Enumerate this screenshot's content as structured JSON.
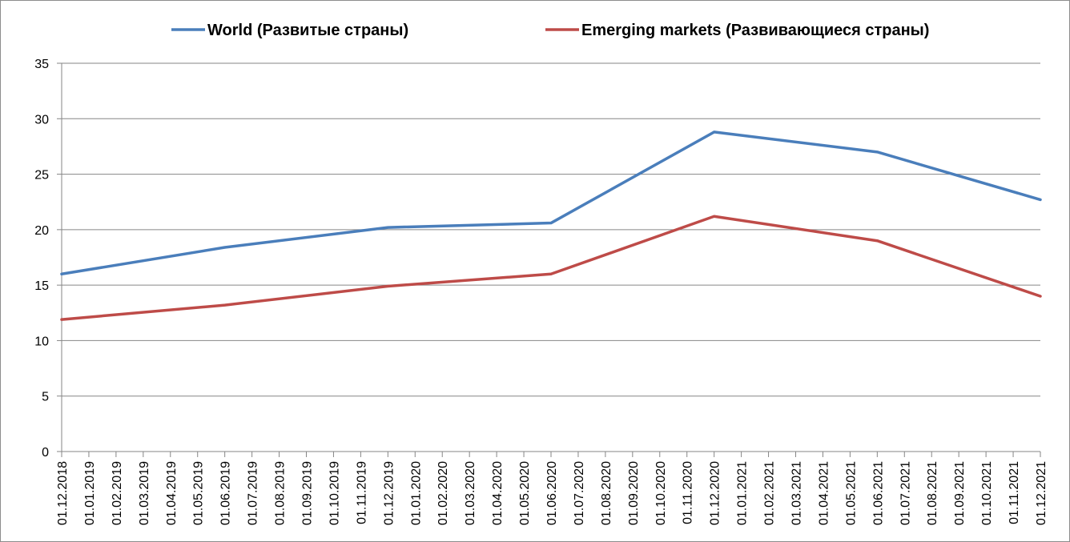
{
  "chart_data": {
    "type": "line",
    "title": "",
    "xlabel": "",
    "ylabel": "",
    "ylim": [
      0,
      35
    ],
    "yticks": [
      "0",
      "5",
      "10",
      "15",
      "20",
      "25",
      "30",
      "35"
    ],
    "grid": "horizontal",
    "legend_position": "top",
    "x": [
      "01.12.2018",
      "01.01.2019",
      "01.02.2019",
      "01.03.2019",
      "01.04.2019",
      "01.05.2019",
      "01.06.2019",
      "01.07.2019",
      "01.08.2019",
      "01.09.2019",
      "01.10.2019",
      "01.11.2019",
      "01.12.2019",
      "01.01.2020",
      "01.02.2020",
      "01.03.2020",
      "01.04.2020",
      "01.05.2020",
      "01.06.2020",
      "01.07.2020",
      "01.08.2020",
      "01.09.2020",
      "01.10.2020",
      "01.11.2020",
      "01.12.2020",
      "01.01.2021",
      "01.02.2021",
      "01.03.2021",
      "01.04.2021",
      "01.05.2021",
      "01.06.2021",
      "01.07.2021",
      "01.08.2021",
      "01.09.2021",
      "01.10.2021",
      "01.11.2021",
      "01.12.2021"
    ],
    "series": [
      {
        "name": "World (Развитые страны)",
        "color": "#4a7ebb",
        "points": [
          [
            "01.12.2018",
            16.0
          ],
          [
            "01.06.2019",
            18.4
          ],
          [
            "01.12.2019",
            20.2
          ],
          [
            "01.06.2020",
            20.6
          ],
          [
            "01.12.2020",
            28.8
          ],
          [
            "01.06.2021",
            27.0
          ],
          [
            "01.12.2021",
            22.7
          ]
        ]
      },
      {
        "name": "Emerging markets (Развивающиеся страны)",
        "color": "#be4b48",
        "points": [
          [
            "01.12.2018",
            11.9
          ],
          [
            "01.06.2019",
            13.2
          ],
          [
            "01.12.2019",
            14.9
          ],
          [
            "01.06.2020",
            16.0
          ],
          [
            "01.12.2020",
            21.2
          ],
          [
            "01.06.2021",
            19.0
          ],
          [
            "01.12.2021",
            14.0
          ]
        ]
      }
    ]
  }
}
